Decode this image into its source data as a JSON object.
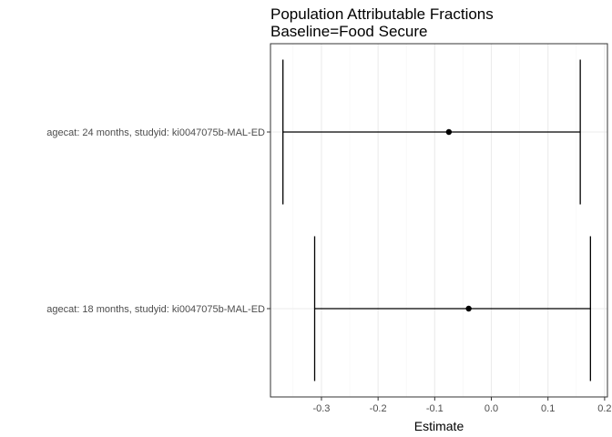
{
  "chart_data": {
    "type": "forest",
    "title": "Population Attributable Fractions",
    "subtitle": "Baseline=Food Secure",
    "xlabel": "Estimate",
    "ylabel": "",
    "xlim": [
      -0.39,
      0.205
    ],
    "x_ticks": [
      "-0.3",
      "-0.2",
      "-0.1",
      "0.0",
      "0.1",
      "0.2"
    ],
    "x_tick_values": [
      -0.3,
      -0.2,
      -0.1,
      0.0,
      0.1,
      0.2
    ],
    "grid": true,
    "legend": "none",
    "categories": [
      "agecat: 24 months, studyid: ki0047075b-MAL-ED",
      "agecat: 18 months, studyid: ki0047075b-MAL-ED"
    ],
    "points": [
      {
        "estimate": -0.075,
        "ci_lower": -0.368,
        "ci_upper": 0.157
      },
      {
        "estimate": -0.04,
        "ci_lower": -0.312,
        "ci_upper": 0.175
      }
    ],
    "colors": {
      "panel_border": "#333333",
      "grid_major": "#ebebeb",
      "grid_minor": "#f5f5f5",
      "mark": "#000000"
    }
  }
}
